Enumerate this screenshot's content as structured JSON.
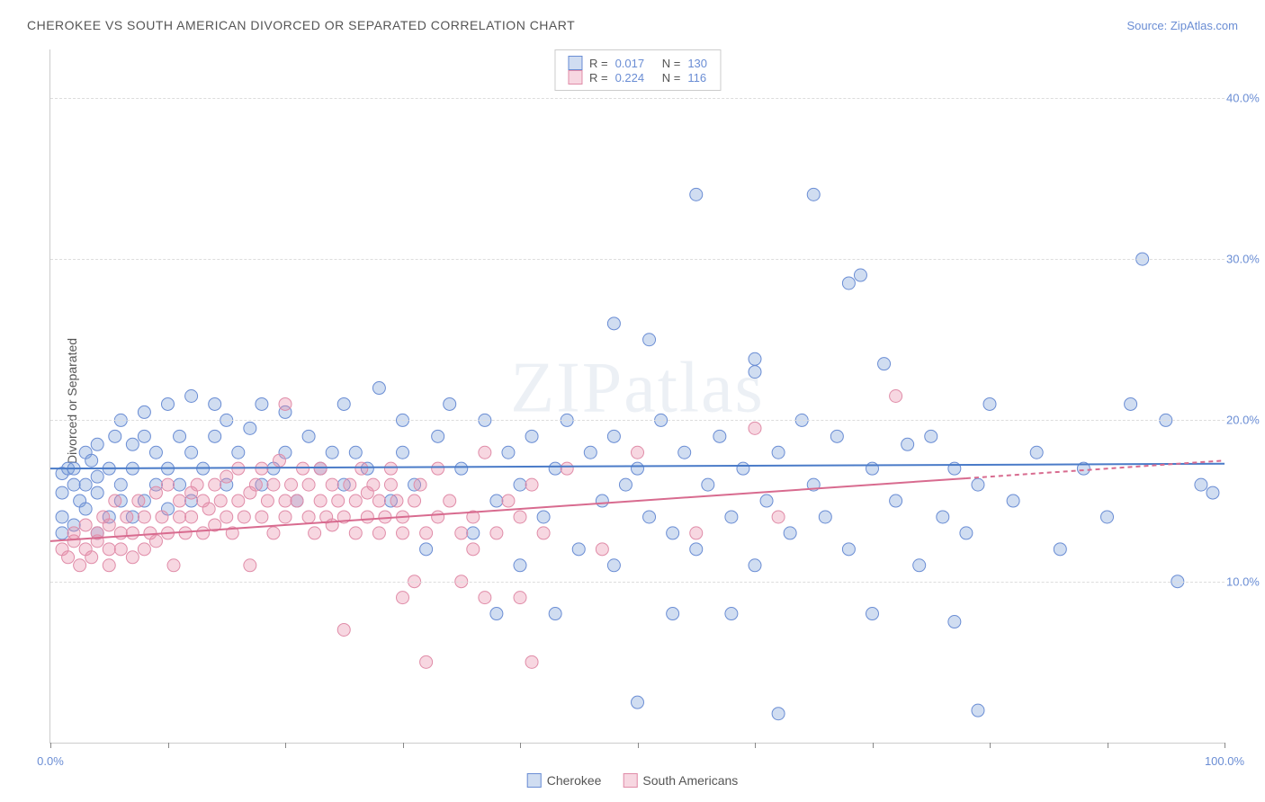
{
  "title": "CHEROKEE VS SOUTH AMERICAN DIVORCED OR SEPARATED CORRELATION CHART",
  "source_label": "Source: ",
  "source_link": "ZipAtlas.com",
  "y_axis_label": "Divorced or Separated",
  "watermark": "ZIPatlas",
  "chart": {
    "type": "scatter",
    "xlim": [
      0,
      100
    ],
    "ylim": [
      0,
      43
    ],
    "y_ticks": [
      10,
      20,
      30,
      40
    ],
    "y_tick_labels": [
      "10.0%",
      "20.0%",
      "30.0%",
      "40.0%"
    ],
    "x_ticks": [
      0,
      10,
      20,
      30,
      40,
      50,
      60,
      70,
      80,
      90,
      100
    ],
    "x_tick_labels": {
      "0": "0.0%",
      "100": "100.0%"
    },
    "background_color": "#ffffff",
    "grid_color": "#dddddd",
    "axis_color": "#cccccc",
    "label_color": "#555555",
    "tick_label_color": "#6a8dd4",
    "marker_radius": 7,
    "marker_stroke_width": 1,
    "series": [
      {
        "name": "Cherokee",
        "fill": "rgba(119,158,216,0.35)",
        "stroke": "#6a8dd4",
        "r_label": "R =",
        "r_value": "0.017",
        "n_label": "N =",
        "n_value": "130",
        "trend": {
          "y_at_x0": 17.0,
          "y_at_x100": 17.3,
          "solid_until_x": 100,
          "color": "#4a7bc8"
        },
        "points": [
          [
            1,
            13
          ],
          [
            1,
            14
          ],
          [
            1,
            15.5
          ],
          [
            1,
            16.7
          ],
          [
            1.5,
            17.0
          ],
          [
            2,
            16
          ],
          [
            2,
            17
          ],
          [
            2,
            13.5
          ],
          [
            2.5,
            15
          ],
          [
            3,
            14.5
          ],
          [
            3,
            16
          ],
          [
            3,
            18
          ],
          [
            3.5,
            17.5
          ],
          [
            4,
            13
          ],
          [
            4,
            15.5
          ],
          [
            4,
            16.5
          ],
          [
            4,
            18.5
          ],
          [
            5,
            14
          ],
          [
            5,
            17
          ],
          [
            5.5,
            19
          ],
          [
            6,
            15
          ],
          [
            6,
            16
          ],
          [
            6,
            20
          ],
          [
            7,
            14
          ],
          [
            7,
            17
          ],
          [
            7,
            18.5
          ],
          [
            8,
            15
          ],
          [
            8,
            19
          ],
          [
            8,
            20.5
          ],
          [
            9,
            16
          ],
          [
            9,
            18
          ],
          [
            10,
            14.5
          ],
          [
            10,
            17
          ],
          [
            10,
            21
          ],
          [
            11,
            16
          ],
          [
            11,
            19
          ],
          [
            12,
            15
          ],
          [
            12,
            18
          ],
          [
            12,
            21.5
          ],
          [
            13,
            17
          ],
          [
            14,
            19
          ],
          [
            14,
            21
          ],
          [
            15,
            16
          ],
          [
            15,
            20
          ],
          [
            16,
            18
          ],
          [
            17,
            19.5
          ],
          [
            18,
            16
          ],
          [
            18,
            21
          ],
          [
            19,
            17
          ],
          [
            20,
            18
          ],
          [
            20,
            20.5
          ],
          [
            21,
            15
          ],
          [
            22,
            19
          ],
          [
            23,
            17
          ],
          [
            24,
            18
          ],
          [
            25,
            21
          ],
          [
            25,
            16
          ],
          [
            26,
            18
          ],
          [
            27,
            17
          ],
          [
            28,
            22
          ],
          [
            29,
            15
          ],
          [
            30,
            18
          ],
          [
            30,
            20
          ],
          [
            31,
            16
          ],
          [
            32,
            12
          ],
          [
            33,
            19
          ],
          [
            34,
            21
          ],
          [
            35,
            17
          ],
          [
            36,
            13
          ],
          [
            37,
            20
          ],
          [
            38,
            15
          ],
          [
            38,
            8
          ],
          [
            39,
            18
          ],
          [
            40,
            16
          ],
          [
            40,
            11
          ],
          [
            41,
            19
          ],
          [
            42,
            14
          ],
          [
            43,
            17
          ],
          [
            43,
            8
          ],
          [
            44,
            20
          ],
          [
            45,
            12
          ],
          [
            46,
            18
          ],
          [
            47,
            15
          ],
          [
            48,
            19
          ],
          [
            48,
            26
          ],
          [
            48,
            11
          ],
          [
            49,
            16
          ],
          [
            50,
            17
          ],
          [
            50,
            2.5
          ],
          [
            51,
            14
          ],
          [
            51,
            25
          ],
          [
            52,
            20
          ],
          [
            53,
            13
          ],
          [
            53,
            8
          ],
          [
            54,
            18
          ],
          [
            55,
            34
          ],
          [
            55,
            12
          ],
          [
            56,
            16
          ],
          [
            57,
            19
          ],
          [
            58,
            14
          ],
          [
            58,
            8
          ],
          [
            59,
            17
          ],
          [
            60,
            23
          ],
          [
            60,
            23.8
          ],
          [
            60,
            11
          ],
          [
            61,
            15
          ],
          [
            62,
            18
          ],
          [
            62,
            1.8
          ],
          [
            63,
            13
          ],
          [
            64,
            20
          ],
          [
            65,
            34
          ],
          [
            65,
            16
          ],
          [
            66,
            14
          ],
          [
            67,
            19
          ],
          [
            68,
            12
          ],
          [
            68,
            28.5
          ],
          [
            69,
            29
          ],
          [
            70,
            8
          ],
          [
            70,
            17
          ],
          [
            71,
            23.5
          ],
          [
            72,
            15
          ],
          [
            73,
            18.5
          ],
          [
            74,
            11
          ],
          [
            75,
            19
          ],
          [
            76,
            14
          ],
          [
            77,
            17
          ],
          [
            77,
            7.5
          ],
          [
            78,
            13
          ],
          [
            79,
            16
          ],
          [
            79,
            2
          ],
          [
            80,
            21
          ],
          [
            82,
            15
          ],
          [
            84,
            18
          ],
          [
            86,
            12
          ],
          [
            88,
            17
          ],
          [
            90,
            14
          ],
          [
            92,
            21
          ],
          [
            93,
            30
          ],
          [
            95,
            20
          ],
          [
            96,
            10
          ],
          [
            98,
            16
          ],
          [
            99,
            15.5
          ]
        ]
      },
      {
        "name": "South Americans",
        "fill": "rgba(233,140,170,0.35)",
        "stroke": "#e08ca8",
        "r_label": "R =",
        "r_value": "0.224",
        "n_label": "N =",
        "n_value": "116",
        "trend": {
          "y_at_x0": 12.5,
          "y_at_x100": 17.5,
          "solid_until_x": 78,
          "color": "#d86b8f"
        },
        "points": [
          [
            1,
            12
          ],
          [
            1.5,
            11.5
          ],
          [
            2,
            12.5
          ],
          [
            2,
            13
          ],
          [
            2.5,
            11
          ],
          [
            3,
            12
          ],
          [
            3,
            13.5
          ],
          [
            3.5,
            11.5
          ],
          [
            4,
            12.5
          ],
          [
            4,
            13
          ],
          [
            4.5,
            14
          ],
          [
            5,
            11
          ],
          [
            5,
            12
          ],
          [
            5,
            13.5
          ],
          [
            5.5,
            15
          ],
          [
            6,
            12
          ],
          [
            6,
            13
          ],
          [
            6.5,
            14
          ],
          [
            7,
            11.5
          ],
          [
            7,
            13
          ],
          [
            7.5,
            15
          ],
          [
            8,
            12
          ],
          [
            8,
            14
          ],
          [
            8.5,
            13
          ],
          [
            9,
            15.5
          ],
          [
            9,
            12.5
          ],
          [
            9.5,
            14
          ],
          [
            10,
            13
          ],
          [
            10,
            16
          ],
          [
            10.5,
            11
          ],
          [
            11,
            14
          ],
          [
            11,
            15
          ],
          [
            11.5,
            13
          ],
          [
            12,
            15.5
          ],
          [
            12,
            14
          ],
          [
            12.5,
            16
          ],
          [
            13,
            13
          ],
          [
            13,
            15
          ],
          [
            13.5,
            14.5
          ],
          [
            14,
            16
          ],
          [
            14,
            13.5
          ],
          [
            14.5,
            15
          ],
          [
            15,
            14
          ],
          [
            15,
            16.5
          ],
          [
            15.5,
            13
          ],
          [
            16,
            15
          ],
          [
            16,
            17
          ],
          [
            16.5,
            14
          ],
          [
            17,
            15.5
          ],
          [
            17,
            11
          ],
          [
            17.5,
            16
          ],
          [
            18,
            14
          ],
          [
            18,
            17
          ],
          [
            18.5,
            15
          ],
          [
            19,
            16
          ],
          [
            19,
            13
          ],
          [
            19.5,
            17.5
          ],
          [
            20,
            15
          ],
          [
            20,
            14
          ],
          [
            20,
            21
          ],
          [
            20.5,
            16
          ],
          [
            21,
            15
          ],
          [
            21.5,
            17
          ],
          [
            22,
            14
          ],
          [
            22,
            16
          ],
          [
            22.5,
            13
          ],
          [
            23,
            15
          ],
          [
            23,
            17
          ],
          [
            23.5,
            14
          ],
          [
            24,
            16
          ],
          [
            24,
            13.5
          ],
          [
            24.5,
            15
          ],
          [
            25,
            7
          ],
          [
            25,
            14
          ],
          [
            25.5,
            16
          ],
          [
            26,
            15
          ],
          [
            26,
            13
          ],
          [
            26.5,
            17
          ],
          [
            27,
            14
          ],
          [
            27,
            15.5
          ],
          [
            27.5,
            16
          ],
          [
            28,
            13
          ],
          [
            28,
            15
          ],
          [
            28.5,
            14
          ],
          [
            29,
            16
          ],
          [
            29,
            17
          ],
          [
            29.5,
            15
          ],
          [
            30,
            14
          ],
          [
            30,
            13
          ],
          [
            30,
            9
          ],
          [
            31,
            15
          ],
          [
            31,
            10
          ],
          [
            31.5,
            16
          ],
          [
            32,
            13
          ],
          [
            32,
            5
          ],
          [
            33,
            14
          ],
          [
            33,
            17
          ],
          [
            34,
            15
          ],
          [
            35,
            13
          ],
          [
            35,
            10
          ],
          [
            36,
            14
          ],
          [
            36,
            12
          ],
          [
            37,
            18
          ],
          [
            37,
            9
          ],
          [
            38,
            13
          ],
          [
            39,
            15
          ],
          [
            40,
            14
          ],
          [
            40,
            9
          ],
          [
            41,
            16
          ],
          [
            41,
            5
          ],
          [
            42,
            13
          ],
          [
            44,
            17
          ],
          [
            47,
            12
          ],
          [
            50,
            18
          ],
          [
            55,
            13
          ],
          [
            60,
            19.5
          ],
          [
            62,
            14
          ],
          [
            72,
            21.5
          ]
        ]
      }
    ]
  },
  "legend_bottom": [
    {
      "name": "Cherokee",
      "fill": "rgba(119,158,216,0.35)",
      "stroke": "#6a8dd4"
    },
    {
      "name": "South Americans",
      "fill": "rgba(233,140,170,0.35)",
      "stroke": "#e08ca8"
    }
  ]
}
